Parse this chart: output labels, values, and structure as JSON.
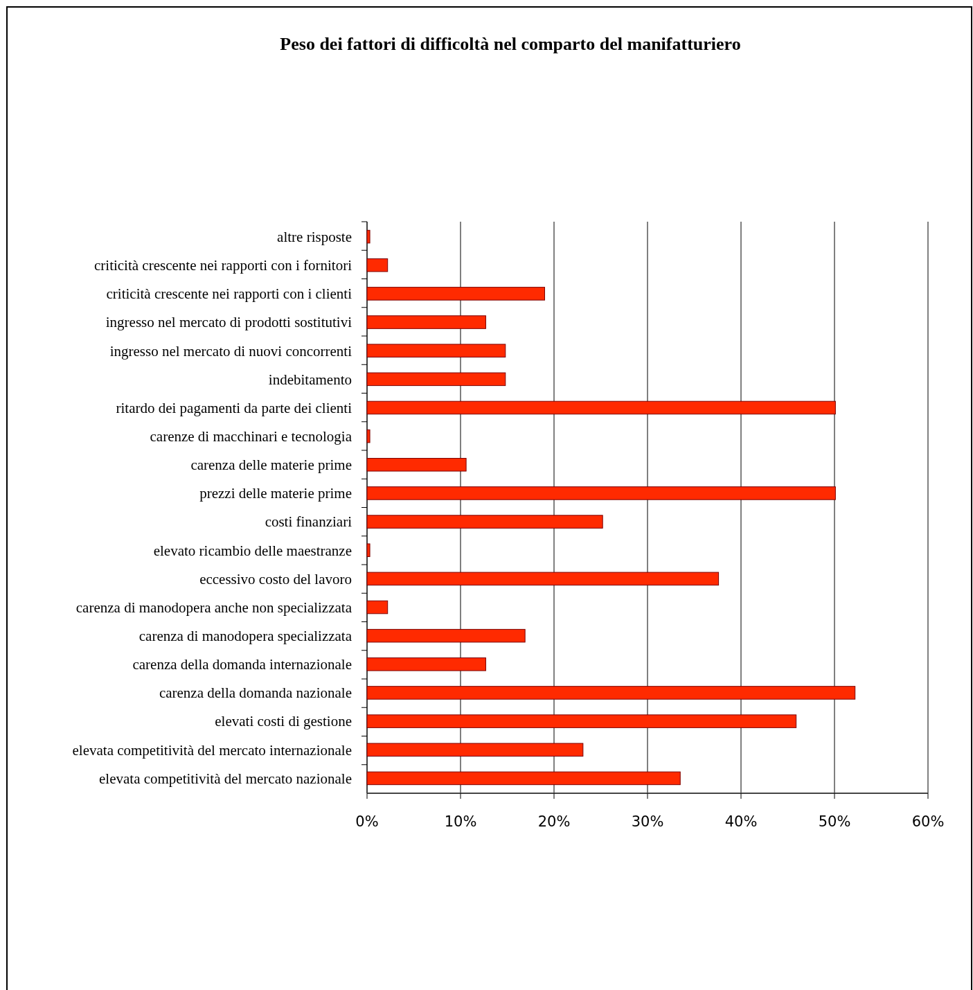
{
  "chart_data": {
    "type": "bar",
    "orientation": "horizontal",
    "title": "Peso dei fattori di difficoltà nel comparto del manifatturiero",
    "categories": [
      "altre risposte",
      "criticità crescente nei rapporti con i fornitori",
      "criticità crescente nei rapporti con i clienti",
      "ingresso nel mercato di prodotti sostitutivi",
      "ingresso nel mercato di nuovi concorrenti",
      "indebitamento",
      "ritardo dei pagamenti da parte dei clienti",
      "carenze di macchinari e tecnologia",
      "carenza delle materie prime",
      "prezzi delle materie prime",
      "costi finanziari",
      "elevato ricambio delle maestranze",
      "eccessivo costo del lavoro",
      "carenza di manodopera anche non specializzata",
      "carenza di manodopera specializzata",
      "carenza della domanda internazionale",
      "carenza della domanda nazionale",
      "elevati costi di gestione",
      "elevata competitività del mercato internazionale",
      "elevata competitività del mercato nazionale"
    ],
    "values": [
      0.3,
      2.2,
      19,
      12.7,
      14.8,
      14.8,
      50.1,
      0.3,
      10.6,
      50.1,
      25.2,
      0.3,
      37.6,
      2.2,
      16.9,
      12.7,
      52.2,
      45.9,
      23.1,
      33.5
    ],
    "color": "#ff2a00",
    "xlim": [
      0,
      60
    ],
    "xticks": [
      {
        "value": 0,
        "label": "0%"
      },
      {
        "value": 10,
        "label": "10%"
      },
      {
        "value": 20,
        "label": "20%"
      },
      {
        "value": 30,
        "label": "30%"
      },
      {
        "value": 40,
        "label": "40%"
      },
      {
        "value": 50,
        "label": "50%"
      },
      {
        "value": 60,
        "label": "60%"
      }
    ],
    "grid": "x"
  }
}
